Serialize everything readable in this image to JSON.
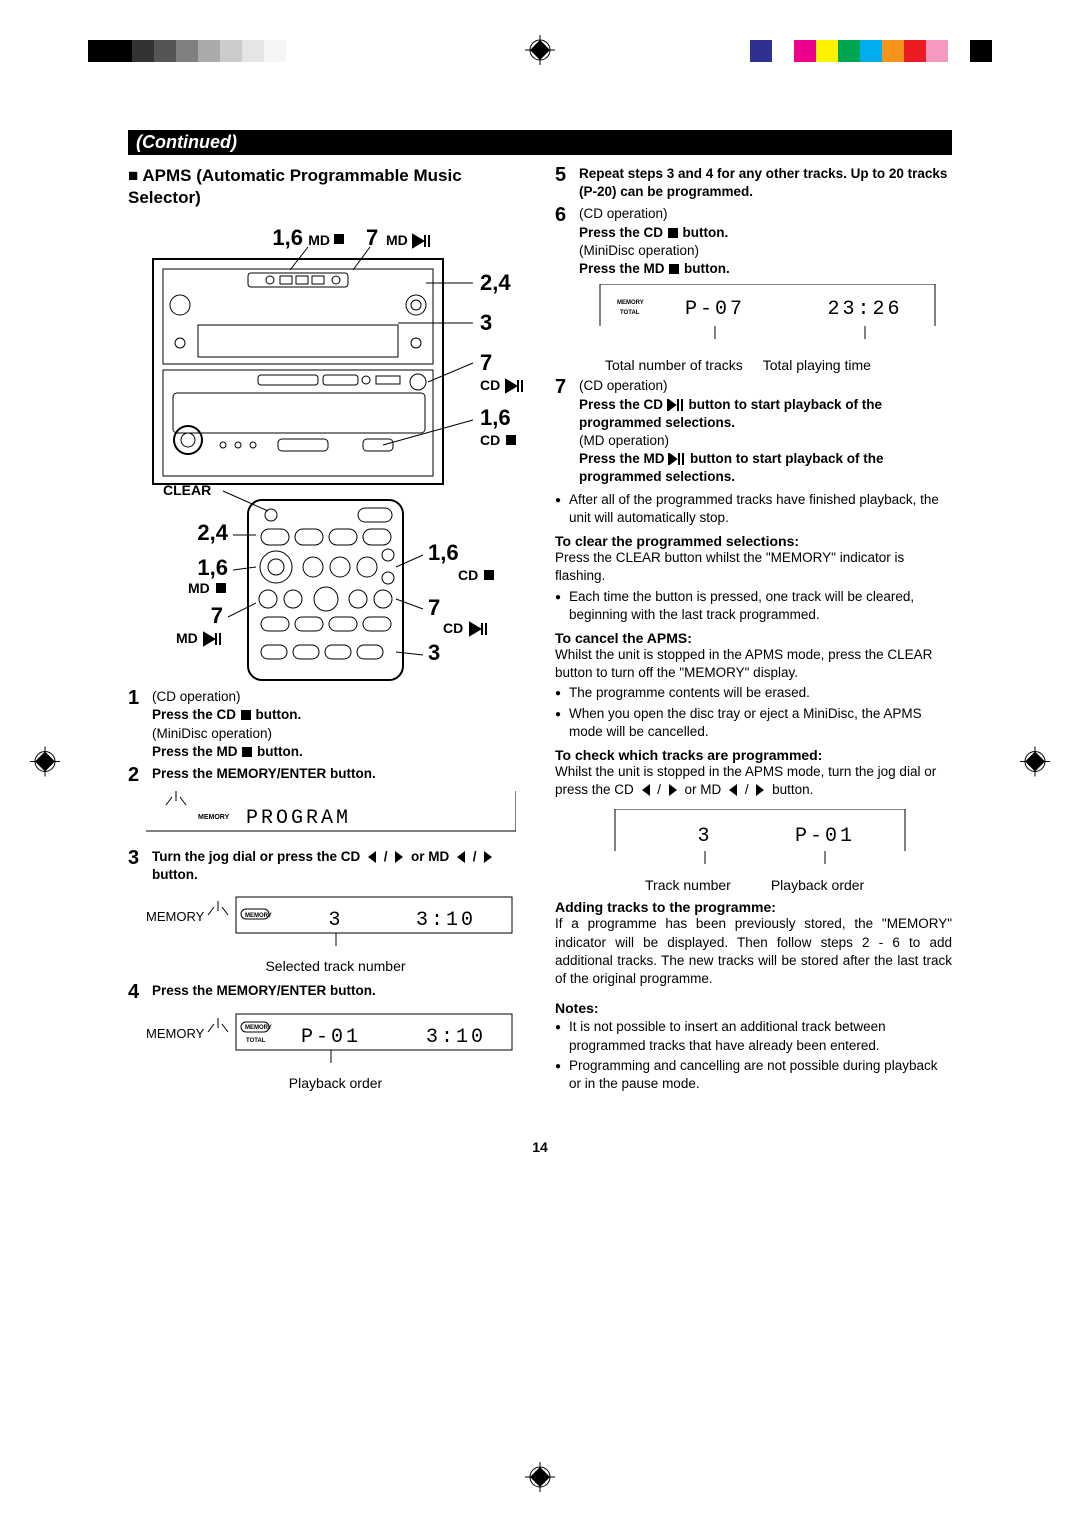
{
  "print_marks": {
    "mono_shades": [
      "#000000",
      "#000000",
      "#333333",
      "#555555",
      "#808080",
      "#aaaaaa",
      "#cccccc",
      "#e5e5e5",
      "#f5f5f5"
    ],
    "color_swatches": [
      "#ffffff",
      "#2e3192",
      "#ffffff",
      "#ec008c",
      "#fff200",
      "#00a651",
      "#00aeef",
      "#f7941d",
      "#ed1c24",
      "#f49ac1",
      "#ffffff",
      "#000000"
    ]
  },
  "header": "(Continued)",
  "section_title_prefix": "■",
  "section_title": "APMS (Automatic Programmable Music Selector)",
  "diagram_labels": {
    "top_left": "1,6",
    "top_md_stop": "MD",
    "top_seven": "7",
    "top_md_play": "MD",
    "r1": "2,4",
    "r2": "3",
    "r3": "7",
    "r3_sub": "CD",
    "r4": "1,6",
    "r4_sub": "CD",
    "clear": "CLEAR",
    "remote_l1": "2,4",
    "remote_l2": "1,6",
    "remote_l2_sub": "MD",
    "remote_l3": "7",
    "remote_l3_sub": "MD",
    "remote_r1": "1,6",
    "remote_r1_sub": "CD",
    "remote_r2": "7",
    "remote_r2_sub": "CD",
    "remote_r3": "3"
  },
  "left_steps": {
    "s1": {
      "num": "1",
      "op1": "(CD operation)",
      "l1": "Press the CD ",
      "l1b": " button.",
      "op2": "(MiniDisc operation)",
      "l2": "Press the MD ",
      "l2b": " button."
    },
    "s2": {
      "num": "2",
      "l1": "Press the MEMORY/ENTER button."
    },
    "display2": {
      "mem": "MEMORY",
      "text": "PROGRAM"
    },
    "s3": {
      "num": "3",
      "l1a": "Turn the jog dial or press the CD ",
      "l1b": " / ",
      "l1c": " or  MD ",
      "l1d": " / ",
      "l1e": " button."
    },
    "display3": {
      "mem": "MEMORY",
      "indic": "MEMORY",
      "track": "3",
      "time": "3:10",
      "caption": "Selected track number"
    },
    "s4": {
      "num": "4",
      "l1": "Press the MEMORY/ENTER button."
    },
    "display4": {
      "mem": "MEMORY",
      "indic": "TOTAL",
      "main": "P-01",
      "time": "3:10",
      "caption": "Playback order"
    }
  },
  "right_steps": {
    "s5": {
      "num": "5",
      "l1": "Repeat steps 3 and 4 for any other tracks. Up to 20 tracks (P-20) can be programmed."
    },
    "s6": {
      "num": "6",
      "op1": "(CD operation)",
      "l1": "Press the CD ",
      "l1b": " button.",
      "op2": "(MiniDisc operation)",
      "l2": "Press the MD ",
      "l2b": " button."
    },
    "display6": {
      "indic1": "MEMORY",
      "indic2": "TOTAL",
      "main": "P-07",
      "time": "23:26",
      "cap1": "Total number of tracks",
      "cap2": "Total playing time"
    },
    "s7": {
      "num": "7",
      "op1": "(CD operation)",
      "l1": "Press the CD ",
      "l1b": " button to start playback of the programmed selections.",
      "op2": "(MD operation)",
      "l2": "Press the MD ",
      "l2b": " button to start playback of the programmed selections."
    },
    "bul1": "After all of the programmed tracks have finished playback, the unit will automatically stop.",
    "h1": "To clear the programmed selections:",
    "p1": "Press the CLEAR button whilst the \"MEMORY\" indicator is flashing.",
    "bul2": "Each time the button is pressed, one track will be cleared, beginning with the last track programmed.",
    "h2": "To cancel the APMS:",
    "p2": "Whilst the unit is stopped in the APMS mode, press the CLEAR button to turn off the \"MEMORY\" display.",
    "bul3": "The programme contents will be erased.",
    "bul4": "When you open the disc tray or eject a MiniDisc, the APMS mode will be cancelled.",
    "h3": "To check which tracks are programmed:",
    "p3a": "Whilst the unit is stopped in the APMS mode, turn the jog dial or press the CD ",
    "p3b": " / ",
    "p3c": " or MD ",
    "p3d": " / ",
    "p3e": " button.",
    "display7": {
      "main": "3",
      "right": "P-01",
      "cap1": "Track number",
      "cap2": "Playback order"
    },
    "h4": "Adding tracks to the programme:",
    "p4": "If a programme has been previously stored, the \"MEMORY\" indicator will be displayed. Then follow steps 2 - 6 to add additional tracks. The new tracks will be stored after the last track of the original programme.",
    "notes_h": "Notes:",
    "note1": "It is not possible to insert an additional track between programmed tracks that have already been entered.",
    "note2": "Programming and cancelling are not possible during playback or in the pause mode."
  },
  "page_number": "14"
}
